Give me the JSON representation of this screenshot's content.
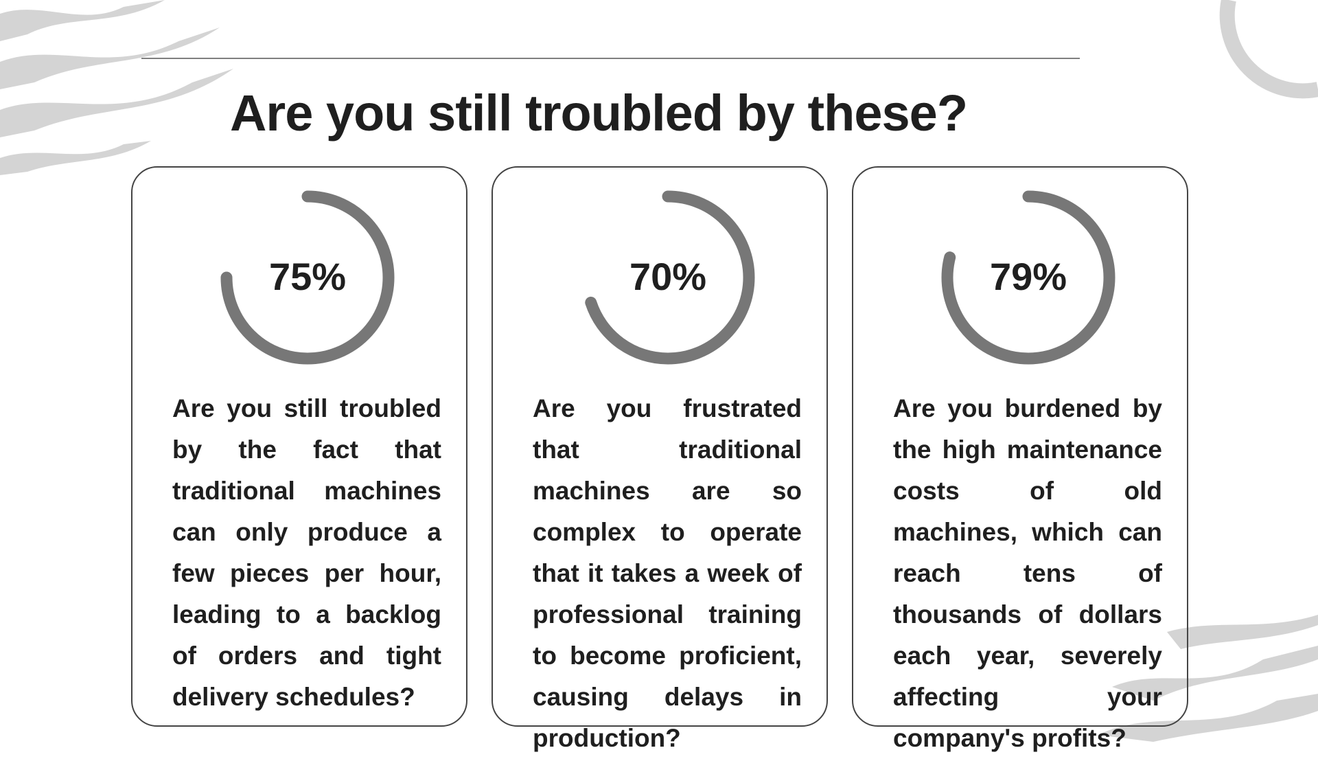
{
  "title": "Are you still troubled by these?",
  "cards": [
    {
      "value": 75,
      "value_label": "75%",
      "text": "Are you still troubled by the fact that traditional machines can only produce a few pieces per hour, leading to a backlog of orders and tight delivery schedules?"
    },
    {
      "value": 70,
      "value_label": "70%",
      "text": "Are you frustrated that traditional machines are so complex to operate that it takes a week of professional training to become proficient, causing delays in production?"
    },
    {
      "value": 79,
      "value_label": "79%",
      "text": "Are you burdened by the high maintenance costs of old machines, which can reach tens of thousands of dollars each year, severely affecting your company's profits?"
    }
  ]
}
